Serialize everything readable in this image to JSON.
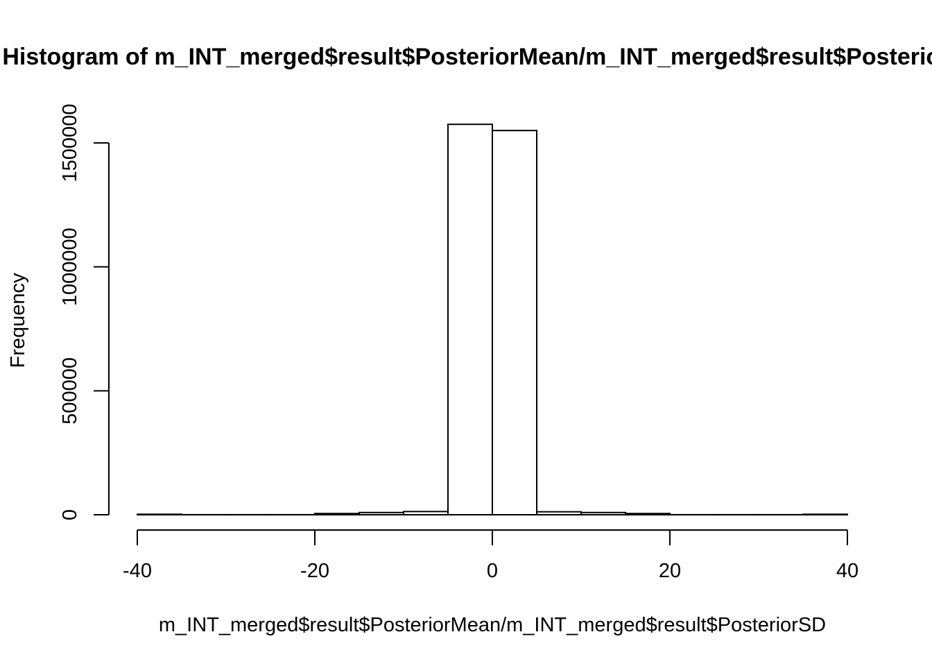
{
  "chart_data": {
    "type": "bar",
    "title": "Histogram of m_INT_merged$result$PosteriorMean/m_INT_merged$result$PosteriorSD",
    "xlabel": "m_INT_merged$result$PosteriorMean/m_INT_merged$result$PosteriorSD",
    "ylabel": "Frequency",
    "bin_edges": [
      -40,
      -35,
      -30,
      -25,
      -20,
      -15,
      -10,
      -5,
      0,
      5,
      10,
      15,
      20,
      25,
      30,
      35,
      40
    ],
    "values": [
      2000,
      300,
      300,
      300,
      5000,
      9000,
      13000,
      1575000,
      1550000,
      12000,
      9000,
      5000,
      300,
      300,
      300,
      2000
    ],
    "xlim": [
      -40,
      40
    ],
    "ylim": [
      0,
      1600000
    ],
    "xticks": [
      -40,
      -20,
      0,
      20,
      40
    ],
    "xtick_labels": [
      "-40",
      "-20",
      "0",
      "20",
      "40"
    ],
    "yticks": [
      0,
      500000,
      1000000,
      1500000
    ],
    "ytick_labels": [
      "0",
      "500000",
      "1000000",
      "1500000"
    ],
    "grid": false,
    "legend": "none"
  }
}
